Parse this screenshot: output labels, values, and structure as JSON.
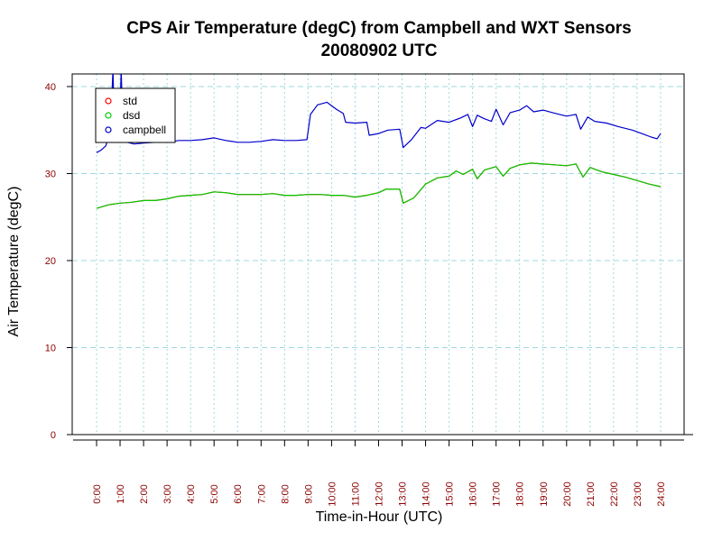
{
  "chart_data": {
    "type": "line",
    "title": "CPS Air Temperature (degC) from Campbell and WXT Sensors",
    "subtitle": "20080902  UTC",
    "xlabel": "Time-in-Hour (UTC)",
    "ylabel": "Air Temperature (degC)",
    "xlim": [
      -1,
      25
    ],
    "ylim": [
      0,
      42
    ],
    "grid": true,
    "legend_position": "top-left",
    "x_ticks": [
      "0:00",
      "1:00",
      "2:00",
      "3:00",
      "4:00",
      "5:00",
      "6:00",
      "7:00",
      "8:00",
      "9:00",
      "10:00",
      "11:00",
      "12:00",
      "13:00",
      "14:00",
      "15:00",
      "16:00",
      "17:00",
      "18:00",
      "19:00",
      "20:00",
      "21:00",
      "22:00",
      "23:00",
      "24:00"
    ],
    "y_ticks": [
      0,
      10,
      20,
      30,
      40
    ],
    "series": [
      {
        "name": "std",
        "color": "#ff0000",
        "points": [
          [
            0,
            26.0
          ],
          [
            0.5,
            26.4
          ],
          [
            1,
            26.6
          ],
          [
            1.5,
            26.7
          ],
          [
            2,
            26.9
          ],
          [
            2.5,
            26.9
          ],
          [
            3,
            27.1
          ],
          [
            3.5,
            27.4
          ],
          [
            4,
            27.5
          ],
          [
            4.5,
            27.6
          ],
          [
            5,
            27.9
          ],
          [
            5.5,
            27.8
          ],
          [
            6,
            27.6
          ],
          [
            6.5,
            27.6
          ],
          [
            7,
            27.6
          ],
          [
            7.5,
            27.7
          ],
          [
            8,
            27.5
          ],
          [
            8.5,
            27.5
          ],
          [
            9,
            27.6
          ],
          [
            9.5,
            27.6
          ],
          [
            10,
            27.5
          ],
          [
            10.5,
            27.5
          ],
          [
            11,
            27.3
          ],
          [
            11.5,
            27.5
          ],
          [
            12,
            27.8
          ],
          [
            12.3,
            28.2
          ],
          [
            12.9,
            28.2
          ],
          [
            13.05,
            26.6
          ],
          [
            13.5,
            27.2
          ],
          [
            14,
            28.8
          ],
          [
            14.5,
            29.5
          ],
          [
            15,
            29.7
          ],
          [
            15.3,
            30.3
          ],
          [
            15.6,
            29.9
          ],
          [
            16,
            30.5
          ],
          [
            16.2,
            29.4
          ],
          [
            16.5,
            30.4
          ],
          [
            17,
            30.8
          ],
          [
            17.3,
            29.7
          ],
          [
            17.6,
            30.6
          ],
          [
            18,
            31.0
          ],
          [
            18.5,
            31.2
          ],
          [
            19,
            31.1
          ],
          [
            19.5,
            31.0
          ],
          [
            20,
            30.9
          ],
          [
            20.4,
            31.1
          ],
          [
            20.7,
            29.6
          ],
          [
            21,
            30.7
          ],
          [
            21.5,
            30.2
          ],
          [
            22,
            29.9
          ],
          [
            22.5,
            29.6
          ],
          [
            23,
            29.2
          ],
          [
            23.5,
            28.8
          ],
          [
            24,
            28.5
          ]
        ]
      },
      {
        "name": "dsd",
        "color": "#00cc00",
        "points": [
          [
            0,
            26.0
          ],
          [
            0.5,
            26.4
          ],
          [
            1,
            26.6
          ],
          [
            1.5,
            26.7
          ],
          [
            2,
            26.9
          ],
          [
            2.5,
            26.9
          ],
          [
            3,
            27.1
          ],
          [
            3.5,
            27.4
          ],
          [
            4,
            27.5
          ],
          [
            4.5,
            27.6
          ],
          [
            5,
            27.9
          ],
          [
            5.5,
            27.8
          ],
          [
            6,
            27.6
          ],
          [
            6.5,
            27.6
          ],
          [
            7,
            27.6
          ],
          [
            7.5,
            27.7
          ],
          [
            8,
            27.5
          ],
          [
            8.5,
            27.5
          ],
          [
            9,
            27.6
          ],
          [
            9.5,
            27.6
          ],
          [
            10,
            27.5
          ],
          [
            10.5,
            27.5
          ],
          [
            11,
            27.3
          ],
          [
            11.5,
            27.5
          ],
          [
            12,
            27.8
          ],
          [
            12.3,
            28.2
          ],
          [
            12.9,
            28.2
          ],
          [
            13.05,
            26.6
          ],
          [
            13.5,
            27.2
          ],
          [
            14,
            28.8
          ],
          [
            14.5,
            29.5
          ],
          [
            15,
            29.7
          ],
          [
            15.3,
            30.3
          ],
          [
            15.6,
            29.9
          ],
          [
            16,
            30.5
          ],
          [
            16.2,
            29.4
          ],
          [
            16.5,
            30.4
          ],
          [
            17,
            30.8
          ],
          [
            17.3,
            29.7
          ],
          [
            17.6,
            30.6
          ],
          [
            18,
            31.0
          ],
          [
            18.5,
            31.2
          ],
          [
            19,
            31.1
          ],
          [
            19.5,
            31.0
          ],
          [
            20,
            30.9
          ],
          [
            20.4,
            31.1
          ],
          [
            20.7,
            29.6
          ],
          [
            21,
            30.7
          ],
          [
            21.5,
            30.2
          ],
          [
            22,
            29.9
          ],
          [
            22.5,
            29.6
          ],
          [
            23,
            29.2
          ],
          [
            23.5,
            28.8
          ],
          [
            24,
            28.5
          ]
        ]
      },
      {
        "name": "campbell",
        "color": "#0000cc",
        "points": [
          [
            0,
            32.4
          ],
          [
            0.2,
            32.7
          ],
          [
            0.4,
            33.2
          ],
          [
            0.6,
            35.5
          ],
          [
            0.7,
            42.0
          ],
          [
            0.75,
            36.0
          ],
          [
            0.85,
            34.0
          ],
          [
            1.0,
            37.0
          ],
          [
            1.05,
            42.0
          ],
          [
            1.1,
            36.5
          ],
          [
            1.3,
            33.6
          ],
          [
            1.6,
            33.4
          ],
          [
            2,
            33.5
          ],
          [
            2.5,
            33.6
          ],
          [
            3,
            33.6
          ],
          [
            3.5,
            33.8
          ],
          [
            4,
            33.8
          ],
          [
            4.5,
            33.9
          ],
          [
            5,
            34.1
          ],
          [
            5.5,
            33.8
          ],
          [
            6,
            33.6
          ],
          [
            6.5,
            33.6
          ],
          [
            7,
            33.7
          ],
          [
            7.5,
            33.9
          ],
          [
            8,
            33.8
          ],
          [
            8.5,
            33.8
          ],
          [
            8.95,
            33.9
          ],
          [
            9.1,
            36.8
          ],
          [
            9.4,
            37.9
          ],
          [
            9.8,
            38.2
          ],
          [
            10.2,
            37.4
          ],
          [
            10.5,
            36.9
          ],
          [
            10.6,
            35.9
          ],
          [
            11,
            35.8
          ],
          [
            11.5,
            35.9
          ],
          [
            11.6,
            34.4
          ],
          [
            12,
            34.6
          ],
          [
            12.4,
            35.0
          ],
          [
            12.9,
            35.1
          ],
          [
            13.05,
            33.0
          ],
          [
            13.4,
            33.9
          ],
          [
            13.8,
            35.3
          ],
          [
            14,
            35.2
          ],
          [
            14.5,
            36.1
          ],
          [
            15,
            35.9
          ],
          [
            15.5,
            36.4
          ],
          [
            15.8,
            36.8
          ],
          [
            16,
            35.4
          ],
          [
            16.2,
            36.7
          ],
          [
            16.5,
            36.3
          ],
          [
            16.8,
            36.0
          ],
          [
            17.0,
            37.4
          ],
          [
            17.3,
            35.6
          ],
          [
            17.6,
            37.0
          ],
          [
            18,
            37.3
          ],
          [
            18.3,
            37.8
          ],
          [
            18.6,
            37.1
          ],
          [
            19,
            37.3
          ],
          [
            19.4,
            37.0
          ],
          [
            19.7,
            36.8
          ],
          [
            20,
            36.6
          ],
          [
            20.4,
            36.8
          ],
          [
            20.6,
            35.1
          ],
          [
            20.9,
            36.5
          ],
          [
            21.2,
            36.0
          ],
          [
            21.7,
            35.8
          ],
          [
            22.2,
            35.4
          ],
          [
            22.8,
            35.0
          ],
          [
            23.3,
            34.5
          ],
          [
            23.6,
            34.2
          ],
          [
            23.85,
            34.0
          ],
          [
            24,
            34.6
          ]
        ]
      }
    ]
  }
}
